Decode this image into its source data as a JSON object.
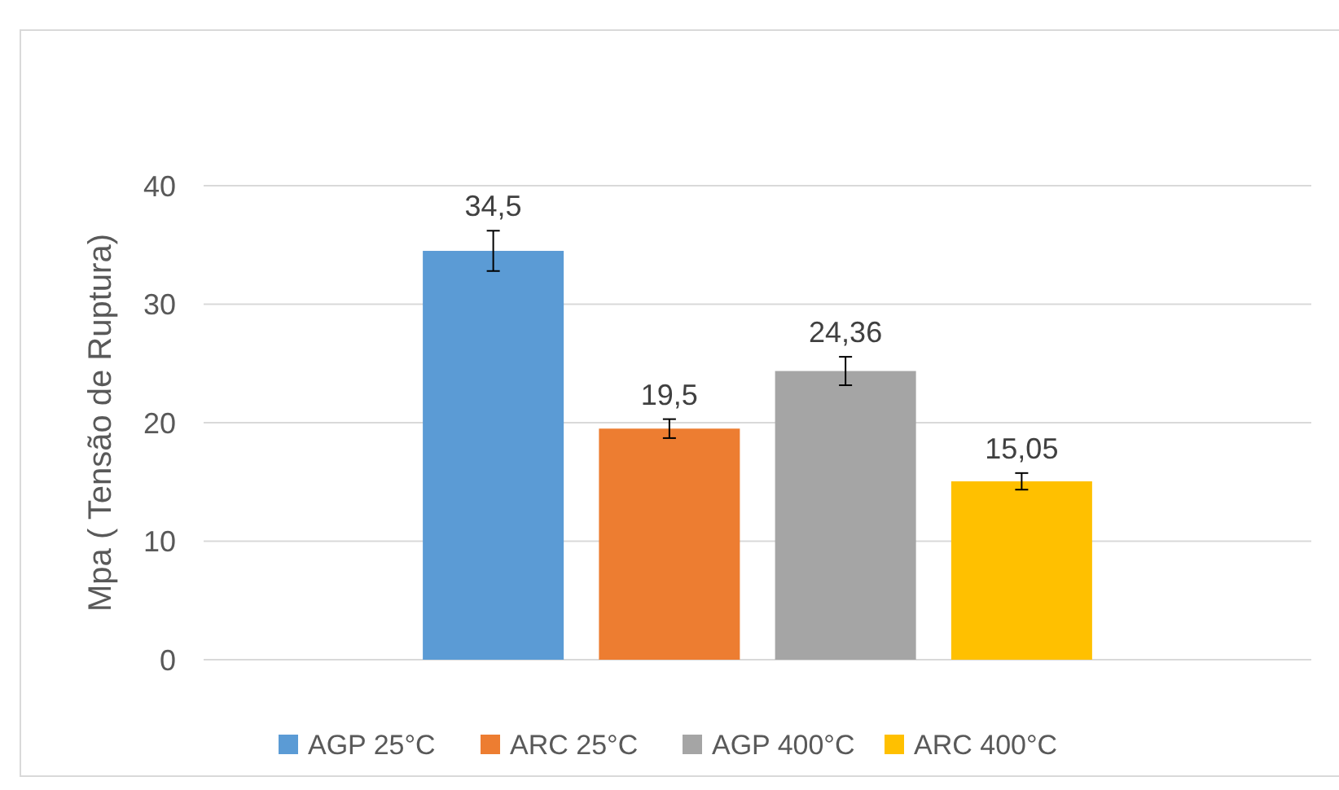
{
  "chart_data": {
    "type": "bar",
    "ylabel": "Mpa ( Tensão de Ruptura)",
    "categories": [
      null
    ],
    "series": [
      {
        "name": "AGP 25°C",
        "color": "#5b9bd5",
        "values": [
          34.5
        ],
        "value_labels": [
          "34,5"
        ],
        "errors": [
          1.7
        ]
      },
      {
        "name": "ARC 25°C",
        "color": "#ed7d31",
        "values": [
          19.5
        ],
        "value_labels": [
          "19,5"
        ],
        "errors": [
          0.8
        ]
      },
      {
        "name": "AGP 400°C",
        "color": "#a5a5a5",
        "values": [
          24.36
        ],
        "value_labels": [
          "24,36"
        ],
        "errors": [
          1.2
        ]
      },
      {
        "name": "ARC 400°C",
        "color": "#ffc000",
        "values": [
          15.05
        ],
        "value_labels": [
          "15,05"
        ],
        "errors": [
          0.7
        ]
      }
    ],
    "ylim": [
      0,
      40
    ],
    "yticks": [
      0,
      10,
      20,
      30,
      40
    ],
    "grid": "y",
    "legend": "bottom"
  }
}
